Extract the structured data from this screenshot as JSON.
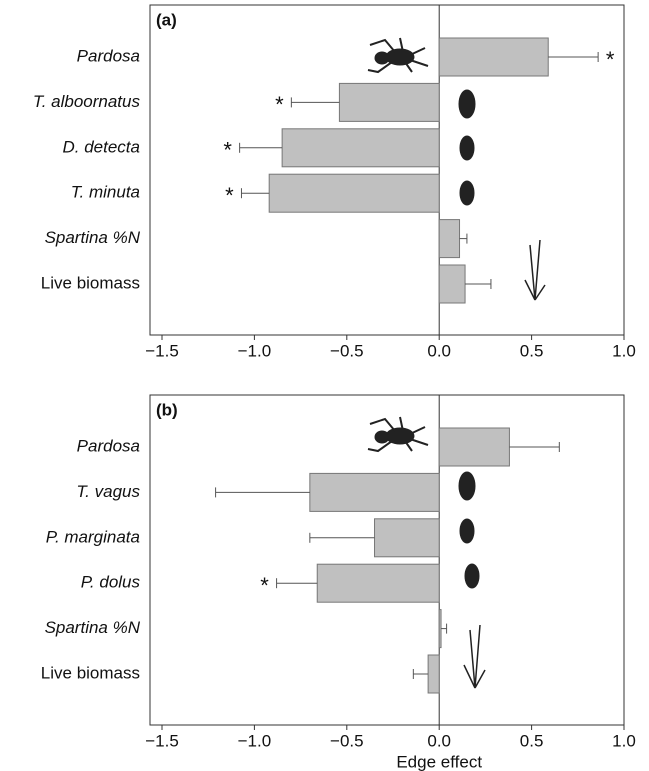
{
  "chart_data": [
    {
      "type": "bar",
      "orientation": "horizontal",
      "panel_label": "(a)",
      "categories": [
        "Pardosa",
        "T. alboornatus",
        "D. detecta",
        "T. minuta",
        "Spartina %N",
        "Live biomass"
      ],
      "italic": [
        true,
        true,
        true,
        true,
        true,
        false
      ],
      "values": [
        0.59,
        -0.54,
        -0.85,
        -0.92,
        0.11,
        0.14
      ],
      "errors": [
        0.27,
        0.26,
        0.23,
        0.15,
        0.04,
        0.14
      ],
      "markers": [
        "*",
        "*",
        "*",
        "*",
        null,
        null
      ],
      "color": "#c0c0c0",
      "xlim": [
        -1.5,
        1.0
      ],
      "xticks": [
        {
          "value": -1.5,
          "label": "−1.5"
        },
        {
          "value": -1.0,
          "label": "−1.0"
        },
        {
          "value": -0.5,
          "label": "−0.5"
        },
        {
          "value": 0,
          "label": "0.0"
        },
        0.5,
        {
          "value": 1.0,
          "label": "1.0"
        }
      ]
    },
    {
      "type": "bar",
      "orientation": "horizontal",
      "panel_label": "(b)",
      "categories": [
        "Pardosa",
        "T. vagus",
        "P. marginata",
        "P. dolus",
        "Spartina %N",
        "Live biomass"
      ],
      "italic": [
        true,
        true,
        true,
        true,
        true,
        false
      ],
      "values": [
        0.38,
        -0.7,
        -0.35,
        -0.66,
        0.01,
        -0.06
      ],
      "errors": [
        0.27,
        0.51,
        0.35,
        0.22,
        0.03,
        0.08
      ],
      "markers": [
        null,
        null,
        null,
        "*",
        null,
        null
      ],
      "color": "#c0c0c0",
      "xlim": [
        -1.5,
        1.0
      ],
      "xticks": [
        {
          "value": -1.5,
          "label": "−1.5"
        },
        {
          "value": -1.0,
          "label": "−1.0"
        },
        {
          "value": -0.5,
          "label": "−0.5"
        },
        {
          "value": 0,
          "label": "0.0"
        },
        0.5,
        {
          "value": 1.0,
          "label": "1.0"
        }
      ],
      "x_label": "Edge effect"
    }
  ]
}
